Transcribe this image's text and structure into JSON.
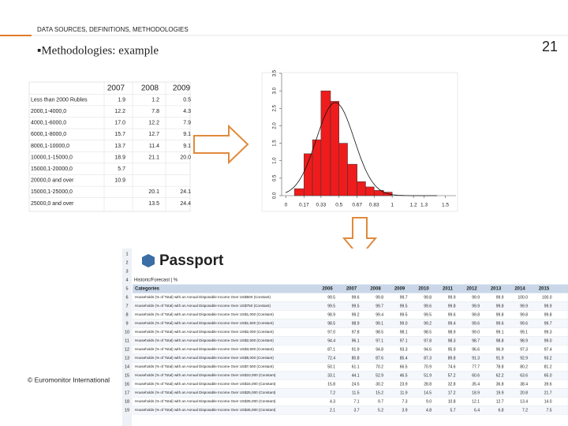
{
  "header": {
    "section": "DATA SOURCES, DEFINITIONS, METHODOLOGIES",
    "page_number": "21",
    "title": "▪Methodologies: example"
  },
  "left_table": {
    "columns": [
      "2007",
      "2008",
      "2009"
    ],
    "rows": [
      {
        "label": "Less than 2000 Rubles",
        "values": [
          "1.9",
          "1.2",
          "0.5"
        ]
      },
      {
        "label": "2000,1-4000,0",
        "values": [
          "12.2",
          "7.8",
          "4.3"
        ]
      },
      {
        "label": "4000,1-6000,0",
        "values": [
          "17.0",
          "12.2",
          "7.9"
        ]
      },
      {
        "label": "6000,1-8000,0",
        "values": [
          "15.7",
          "12.7",
          "9.1"
        ]
      },
      {
        "label": "8000,1-10000,0",
        "values": [
          "13.7",
          "11.4",
          "9.1"
        ]
      },
      {
        "label": "10000,1-15000,0",
        "values": [
          "18.9",
          "21.1",
          "20.0"
        ]
      },
      {
        "label": "15000,1-20000,0",
        "values": [
          "5.7",
          null,
          null
        ]
      },
      {
        "label": "20000,0 and over",
        "values": [
          "10.9",
          null,
          null
        ]
      },
      {
        "label": "15000,1-25000,0",
        "values": [
          null,
          "20.1",
          "24.1"
        ]
      },
      {
        "label": "25000,0 and over",
        "values": [
          null,
          "13.5",
          "24.4"
        ]
      }
    ]
  },
  "histogram": {
    "type": "histogram",
    "bins": [
      0.08,
      0.17,
      0.25,
      0.33,
      0.42,
      0.5,
      0.58,
      0.67,
      0.75,
      0.83,
      0.92,
      1.0
    ],
    "counts": [
      0.2,
      1.2,
      1.6,
      3.0,
      2.7,
      1.5,
      0.9,
      0.4,
      0.25,
      0.15,
      0.1
    ],
    "color": "#ee1c1c",
    "xlim": [
      -0.04,
      1.6
    ],
    "ylim": [
      0,
      3.5
    ],
    "xticks": [
      0,
      0.17,
      0.33,
      0.5,
      0.67,
      0.83,
      1,
      1.2,
      1.3,
      1.5
    ],
    "yticks": [
      {
        "value": 0,
        "label": "0.0"
      },
      {
        "value": 0.5,
        "label": "0.5"
      },
      {
        "value": 1,
        "label": "1.0"
      },
      {
        "value": 1.5,
        "label": "1.5"
      },
      {
        "value": 2,
        "label": "2.0"
      },
      {
        "value": 2.5,
        "label": "2.5"
      },
      {
        "value": 3,
        "label": "3.0"
      },
      {
        "value": 3.5,
        "label": "3.5"
      }
    ]
  },
  "passport": {
    "title": "Passport",
    "subtitle": "Historic/Forecast | %",
    "header": "Categories",
    "years": [
      "2006",
      "2007",
      "2008",
      "2009",
      "2010",
      "2011",
      "2012",
      "2013",
      "2014",
      "2015"
    ],
    "row_numbers": [
      1,
      2,
      3,
      4,
      5,
      6,
      7,
      8,
      9,
      10,
      11,
      12,
      13,
      14,
      15,
      16,
      17,
      18,
      19
    ],
    "rows": [
      {
        "label": "Households (% of Total) with an Annual Disposable Income Over US$500 (Constant)",
        "values": [
          "99.5",
          "99.6",
          "99.8",
          "99.7",
          "99.8",
          "99.9",
          "99.9",
          "99.9",
          "100.0",
          "100.0"
        ]
      },
      {
        "label": "Households (% of Total) with an Annual Disposable Income Over US$750 (Constant)",
        "values": [
          "99.5",
          "99.5",
          "99.7",
          "99.5",
          "99.6",
          "99.8",
          "99.9",
          "99.8",
          "99.9",
          "99.9"
        ]
      },
      {
        "label": "Households (% of Total) with an Annual Disposable Income Over US$1,000 (Constant)",
        "values": [
          "98.9",
          "99.2",
          "99.4",
          "99.5",
          "99.5",
          "99.6",
          "99.8",
          "99.8",
          "99.8",
          "99.8"
        ]
      },
      {
        "label": "Households (% of Total) with an Annual Disposable Income Over US$1,500 (Constant)",
        "values": [
          "98.5",
          "98.9",
          "99.1",
          "99.0",
          "99.2",
          "99.4",
          "99.6",
          "99.6",
          "99.6",
          "99.7"
        ]
      },
      {
        "label": "Households (% of Total) with an Annual Disposable Income Over US$2,000 (Constant)",
        "values": [
          "97.0",
          "97.8",
          "98.5",
          "98.1",
          "98.5",
          "98.9",
          "99.0",
          "99.1",
          "99.1",
          "99.3"
        ]
      },
      {
        "label": "Households (% of Total) with an Annual Disposable Income Over US$2,500 (Constant)",
        "values": [
          "94.4",
          "96.1",
          "97.1",
          "97.1",
          "97.8",
          "98.3",
          "98.7",
          "98.8",
          "98.9",
          "99.0"
        ]
      },
      {
        "label": "Households (% of Total) with an Annual Disposable Income Over US$3,500 (Constant)",
        "values": [
          "87.1",
          "91.9",
          "94.8",
          "93.3",
          "94.6",
          "95.9",
          "96.6",
          "96.9",
          "97.3",
          "97.4"
        ]
      },
      {
        "label": "Households (% of Total) with an Annual Disposable Income Over US$5,000 (Constant)",
        "values": [
          "72.4",
          "80.8",
          "87.6",
          "85.4",
          "87.3",
          "89.8",
          "91.3",
          "91.9",
          "92.9",
          "93.2"
        ]
      },
      {
        "label": "Households (% of Total) with an Annual Disposable Income Over US$7,500 (Constant)",
        "values": [
          "50.1",
          "61.1",
          "70.2",
          "66.5",
          "70.9",
          "74.6",
          "77.7",
          "78.8",
          "80.2",
          "81.2"
        ]
      },
      {
        "label": "Households (% of Total) with an Annual Disposable Income Over US$10,000 (Constant)",
        "values": [
          "33.1",
          "44.1",
          "52.9",
          "46.5",
          "51.9",
          "57.2",
          "60.6",
          "62.2",
          "63.6",
          "65.0"
        ]
      },
      {
        "label": "Households (% of Total) with an Annual Disposable Income Over US$15,000 (Constant)",
        "values": [
          "15.8",
          "24.5",
          "30.2",
          "23.9",
          "28.8",
          "32.8",
          "35.4",
          "36.8",
          "38.4",
          "39.6"
        ]
      },
      {
        "label": "Households (% of Total) with an Annual Disposable Income Over US$25,000 (Constant)",
        "values": [
          "7.2",
          "11.5",
          "15.2",
          "11.9",
          "14.5",
          "17.2",
          "18.9",
          "19.9",
          "20.8",
          "21.7"
        ]
      },
      {
        "label": "Households (% of Total) with an Annual Disposable Income Over US$35,000 (Constant)",
        "values": [
          "4.3",
          "7.1",
          "9.7",
          "7.3",
          "9.0",
          "10.8",
          "12.1",
          "12.7",
          "13.4",
          "14.0"
        ]
      },
      {
        "label": "Households (% of Total) with an Annual Disposable Income Over US$45,000 (Constant)",
        "values": [
          "2.1",
          "3.7",
          "5.2",
          "3.9",
          "4.8",
          "5.7",
          "6.4",
          "6.8",
          "7.2",
          "7.5"
        ]
      }
    ]
  },
  "footer": "© Euromonitor International"
}
